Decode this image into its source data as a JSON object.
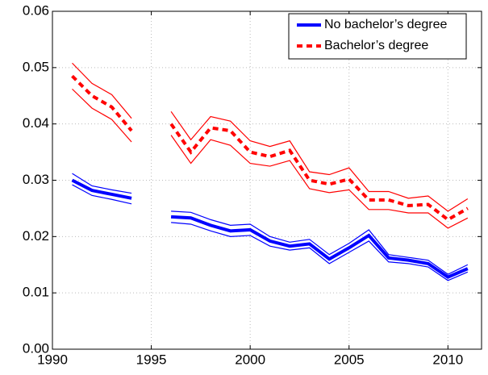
{
  "chart_data": {
    "type": "line",
    "x": [
      1991,
      1992,
      1993,
      1994,
      1995,
      1996,
      1997,
      1998,
      1999,
      2000,
      2001,
      2002,
      2003,
      2004,
      2005,
      2006,
      2007,
      2008,
      2009,
      2010,
      2011
    ],
    "series": [
      {
        "name": "No bachelor’s degree",
        "color": "#0000ff",
        "line_style": "solid",
        "values": [
          0.03,
          0.0282,
          0.0275,
          0.0268,
          null,
          0.0235,
          0.0233,
          0.022,
          0.021,
          0.0212,
          0.0192,
          0.0183,
          0.0187,
          0.016,
          0.018,
          0.0202,
          0.0162,
          0.0158,
          0.0152,
          0.0128,
          0.0143
        ],
        "upper": [
          0.0312,
          0.029,
          0.0283,
          0.0277,
          null,
          0.0245,
          0.0243,
          0.023,
          0.022,
          0.0222,
          0.02,
          0.019,
          0.0195,
          0.0168,
          0.0188,
          0.0212,
          0.0168,
          0.0163,
          0.0158,
          0.0133,
          0.015
        ],
        "lower": [
          0.0292,
          0.0273,
          0.0266,
          0.0258,
          null,
          0.0225,
          0.0222,
          0.021,
          0.02,
          0.0202,
          0.0183,
          0.0176,
          0.018,
          0.0152,
          0.0172,
          0.0192,
          0.0155,
          0.0152,
          0.0146,
          0.0122,
          0.0137
        ]
      },
      {
        "name": "Bachelor’s degree",
        "color": "#ff0000",
        "line_style": "dashed",
        "values": [
          0.0485,
          0.045,
          0.043,
          0.0388,
          null,
          0.04,
          0.035,
          0.0393,
          0.0388,
          0.035,
          0.0342,
          0.0353,
          0.03,
          0.0293,
          0.0302,
          0.0265,
          0.0265,
          0.0255,
          0.0257,
          0.023,
          0.025
        ],
        "upper": [
          0.0508,
          0.0472,
          0.0452,
          0.041,
          null,
          0.0422,
          0.0372,
          0.0413,
          0.0405,
          0.037,
          0.036,
          0.037,
          0.0315,
          0.031,
          0.0322,
          0.028,
          0.028,
          0.0268,
          0.0272,
          0.0245,
          0.0267
        ],
        "lower": [
          0.0462,
          0.0428,
          0.0408,
          0.0368,
          null,
          0.038,
          0.033,
          0.0372,
          0.0362,
          0.033,
          0.0325,
          0.0335,
          0.0285,
          0.0278,
          0.0283,
          0.0248,
          0.0248,
          0.0242,
          0.0242,
          0.0215,
          0.0233
        ]
      }
    ],
    "xlim": [
      1990,
      2011.7
    ],
    "xticks": [
      1990,
      1995,
      2000,
      2005,
      2010
    ],
    "ylim": [
      0,
      0.06
    ],
    "yticks": [
      {
        "value": 0,
        "label": "0.00"
      },
      0.01,
      0.02,
      0.03,
      0.04,
      0.05,
      0.06
    ],
    "grid": true,
    "legend": "top-right"
  }
}
